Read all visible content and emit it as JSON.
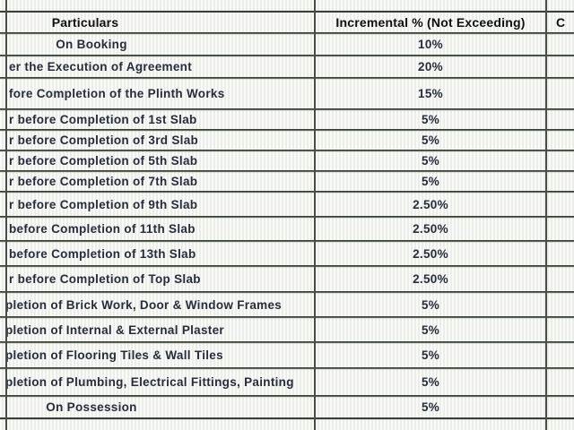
{
  "colors": {
    "grid": "#3a3d38",
    "body_text": "#252d3d",
    "header_text": "#101010"
  },
  "table": {
    "header": {
      "particulars": "Particulars",
      "incremental": "Incremental % (Not Exceeding)",
      "third": "C"
    },
    "rows": [
      {
        "particulars": "On Booking",
        "incremental": "10%",
        "align": "center"
      },
      {
        "particulars": "er the Execution of Agreement",
        "incremental": "20%",
        "align": "cut"
      },
      {
        "particulars": "fore Completion of the Plinth Works",
        "incremental": "15%",
        "align": "cut"
      },
      {
        "particulars": "r before Completion of 1st Slab",
        "incremental": "5%",
        "align": "cut"
      },
      {
        "particulars": "r before Completion of 3rd Slab",
        "incremental": "5%",
        "align": "cut"
      },
      {
        "particulars": "r before Completion of 5th Slab",
        "incremental": "5%",
        "align": "cut"
      },
      {
        "particulars": "r before Completion of 7th Slab",
        "incremental": "5%",
        "align": "cut"
      },
      {
        "particulars": "r before Completion of 9th Slab",
        "incremental": "2.50%",
        "align": "cut"
      },
      {
        "particulars": "before Completion of 11th Slab",
        "incremental": "2.50%",
        "align": "cut"
      },
      {
        "particulars": "before Completion of 13th Slab",
        "incremental": "2.50%",
        "align": "cut"
      },
      {
        "particulars": "r before Completion of Top Slab",
        "incremental": "2.50%",
        "align": "cut"
      },
      {
        "particulars": "pletion of Brick Work, Door & Window Frames",
        "incremental": "5%",
        "align": "cutp"
      },
      {
        "particulars": "pletion of Internal & External Plaster",
        "incremental": "5%",
        "align": "cutp"
      },
      {
        "particulars": "pletion of Flooring Tiles & Wall Tiles",
        "incremental": "5%",
        "align": "cutp"
      },
      {
        "particulars": "pletion of Plumbing, Electrical Fittings, Painting",
        "incremental": "5%",
        "align": "cutp"
      },
      {
        "particulars": "On Possession",
        "incremental": "5%",
        "align": "center"
      }
    ]
  }
}
